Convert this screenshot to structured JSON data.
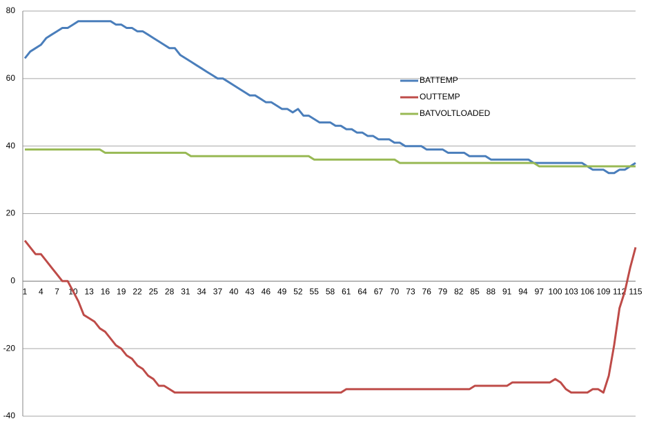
{
  "chart_data": {
    "type": "line",
    "categories": [
      1,
      null,
      null,
      4,
      null,
      null,
      7,
      null,
      null,
      10,
      null,
      null,
      13,
      null,
      null,
      16,
      null,
      null,
      19,
      null,
      null,
      22,
      null,
      null,
      25,
      null,
      null,
      28,
      null,
      null,
      31,
      null,
      null,
      34,
      null,
      null,
      37,
      null,
      null,
      40,
      null,
      null,
      43,
      null,
      null,
      46,
      null,
      null,
      49,
      null,
      null,
      52,
      null,
      null,
      55,
      null,
      null,
      58,
      null,
      null,
      61,
      null,
      null,
      64,
      null,
      null,
      67,
      null,
      null,
      70,
      null,
      null,
      73,
      null,
      null,
      76,
      null,
      null,
      79,
      null,
      null,
      82,
      null,
      null,
      85,
      null,
      null,
      88,
      null,
      null,
      91,
      null,
      null,
      94,
      null,
      null,
      97,
      null,
      null,
      100,
      null,
      null,
      103,
      null,
      null,
      106,
      null,
      null,
      109,
      null,
      null,
      112,
      null,
      null,
      115
    ],
    "series": [
      {
        "name": "BATTEMP",
        "color": "#4a7ebb",
        "values": [
          66,
          68,
          69,
          70,
          72,
          73,
          74,
          75,
          75,
          76,
          77,
          77,
          77,
          77,
          77,
          77,
          77,
          76,
          76,
          75,
          75,
          74,
          74,
          73,
          72,
          71,
          70,
          69,
          69,
          67,
          66,
          65,
          64,
          63,
          62,
          61,
          60,
          60,
          59,
          58,
          57,
          56,
          55,
          55,
          54,
          53,
          53,
          52,
          51,
          51,
          50,
          51,
          49,
          49,
          48,
          47,
          47,
          47,
          46,
          46,
          45,
          45,
          44,
          44,
          43,
          43,
          42,
          42,
          42,
          41,
          41,
          40,
          40,
          40,
          40,
          39,
          39,
          39,
          39,
          38,
          38,
          38,
          38,
          37,
          37,
          37,
          37,
          36,
          36,
          36,
          36,
          36,
          36,
          36,
          36,
          35,
          35,
          35,
          35,
          35,
          35,
          35,
          35,
          35,
          35,
          34,
          33,
          33,
          33,
          32,
          32,
          33,
          33,
          34,
          35
        ]
      },
      {
        "name": "OUTTEMP",
        "color": "#be4b48",
        "values": [
          12,
          10,
          8,
          8,
          6,
          4,
          2,
          0,
          0,
          -3,
          -6,
          -10,
          -11,
          -12,
          -14,
          -15,
          -17,
          -19,
          -20,
          -22,
          -23,
          -25,
          -26,
          -28,
          -29,
          -31,
          -31,
          -32,
          -33,
          -33,
          -33,
          -33,
          -33,
          -33,
          -33,
          -33,
          -33,
          -33,
          -33,
          -33,
          -33,
          -33,
          -33,
          -33,
          -33,
          -33,
          -33,
          -33,
          -33,
          -33,
          -33,
          -33,
          -33,
          -33,
          -33,
          -33,
          -33,
          -33,
          -33,
          -33,
          -32,
          -32,
          -32,
          -32,
          -32,
          -32,
          -32,
          -32,
          -32,
          -32,
          -32,
          -32,
          -32,
          -32,
          -32,
          -32,
          -32,
          -32,
          -32,
          -32,
          -32,
          -32,
          -32,
          -32,
          -31,
          -31,
          -31,
          -31,
          -31,
          -31,
          -31,
          -30,
          -30,
          -30,
          -30,
          -30,
          -30,
          -30,
          -30,
          -29,
          -30,
          -32,
          -33,
          -33,
          -33,
          -33,
          -32,
          -32,
          -33,
          -28,
          -19,
          -8,
          -3,
          4,
          10
        ]
      },
      {
        "name": "BATVOLTLOADED",
        "color": "#98b954",
        "values": [
          39,
          39,
          39,
          39,
          39,
          39,
          39,
          39,
          39,
          39,
          39,
          39,
          39,
          39,
          39,
          38,
          38,
          38,
          38,
          38,
          38,
          38,
          38,
          38,
          38,
          38,
          38,
          38,
          38,
          38,
          38,
          37,
          37,
          37,
          37,
          37,
          37,
          37,
          37,
          37,
          37,
          37,
          37,
          37,
          37,
          37,
          37,
          37,
          37,
          37,
          37,
          37,
          37,
          37,
          36,
          36,
          36,
          36,
          36,
          36,
          36,
          36,
          36,
          36,
          36,
          36,
          36,
          36,
          36,
          36,
          35,
          35,
          35,
          35,
          35,
          35,
          35,
          35,
          35,
          35,
          35,
          35,
          35,
          35,
          35,
          35,
          35,
          35,
          35,
          35,
          35,
          35,
          35,
          35,
          35,
          35,
          34,
          34,
          34,
          34,
          34,
          34,
          34,
          34,
          34,
          34,
          34,
          34,
          34,
          34,
          34,
          34,
          34,
          34,
          34
        ]
      }
    ],
    "ylim": [
      -40,
      80
    ],
    "yticks": [
      -40,
      -20,
      0,
      20,
      40,
      60,
      80
    ],
    "grid": true
  }
}
